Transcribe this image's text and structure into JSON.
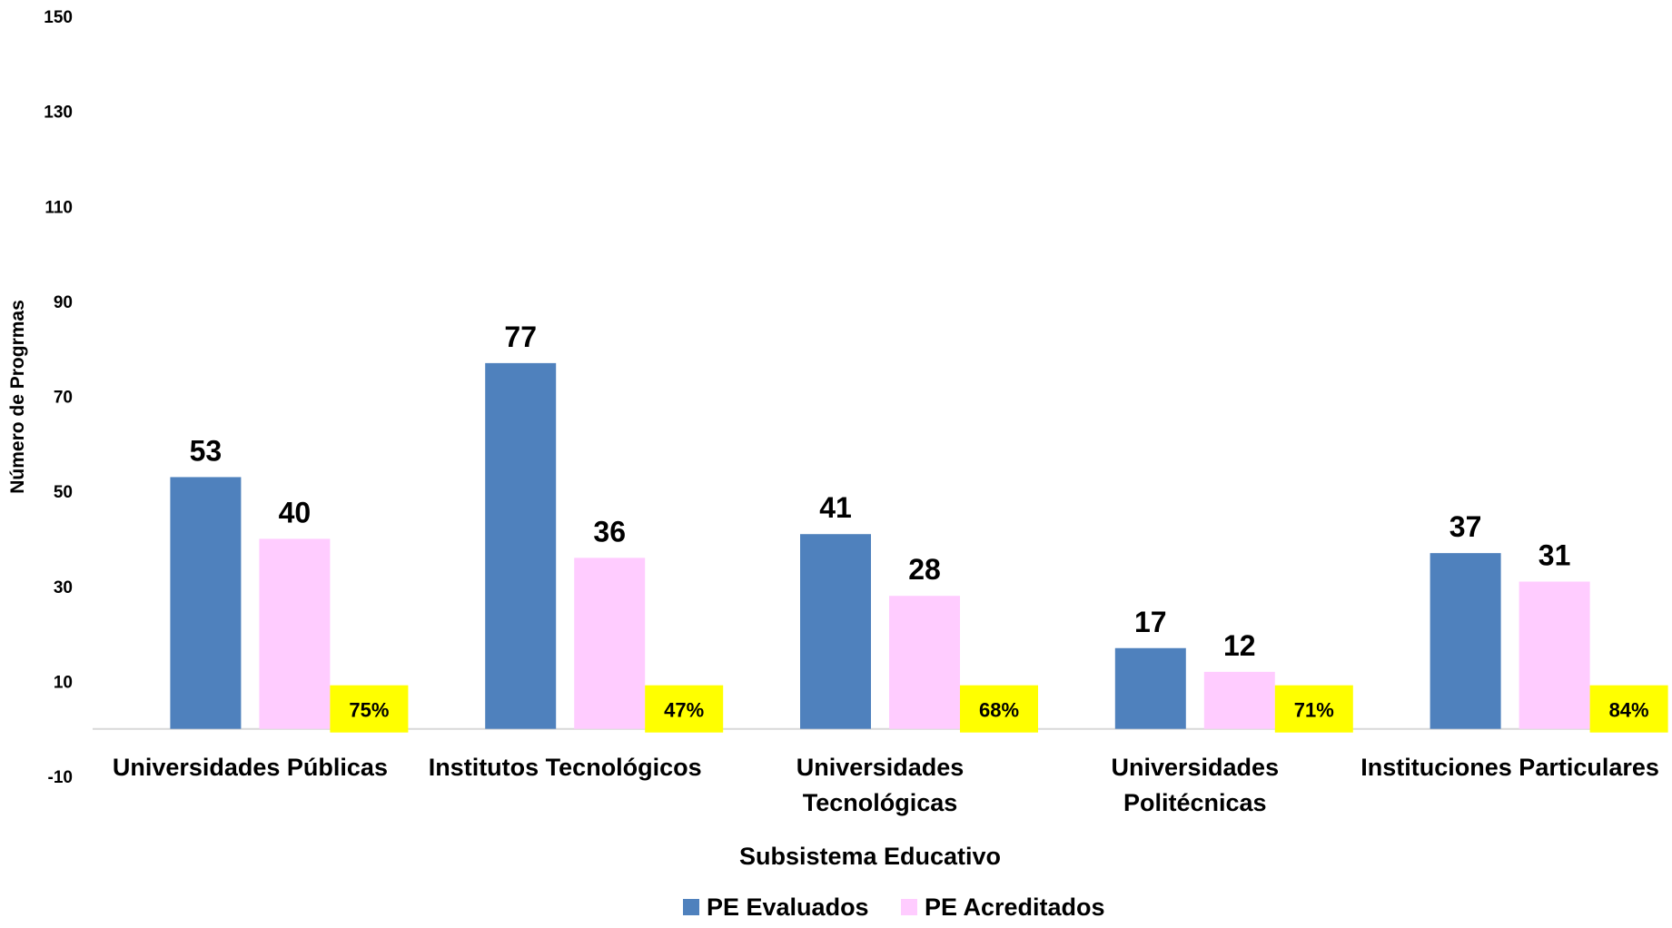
{
  "chart_data": {
    "type": "bar",
    "title": "",
    "xlabel": "Subsistema Educativo",
    "ylabel": "Número de Progrmas",
    "ylim": [
      -10,
      150
    ],
    "yticks": [
      -10,
      10,
      30,
      50,
      70,
      90,
      110,
      130,
      150
    ],
    "grid": false,
    "legend_position": "bottom",
    "categories": [
      [
        "Universidades Públicas"
      ],
      [
        "Institutos Tecnológicos"
      ],
      [
        "Universidades",
        "Tecnológicas"
      ],
      [
        "Universidades",
        "Politécnicas"
      ],
      [
        "Instituciones Particulares"
      ]
    ],
    "series": [
      {
        "name": "PE Evaluados",
        "color": "#4f81bd",
        "values": [
          53,
          77,
          41,
          17,
          37
        ]
      },
      {
        "name": "PE Acreditados",
        "color": "#ffccff",
        "values": [
          40,
          36,
          28,
          12,
          31
        ]
      }
    ],
    "percent_labels": {
      "color": "#ffff00",
      "values": [
        "75%",
        "47%",
        "68%",
        "71%",
        "84%"
      ]
    }
  }
}
